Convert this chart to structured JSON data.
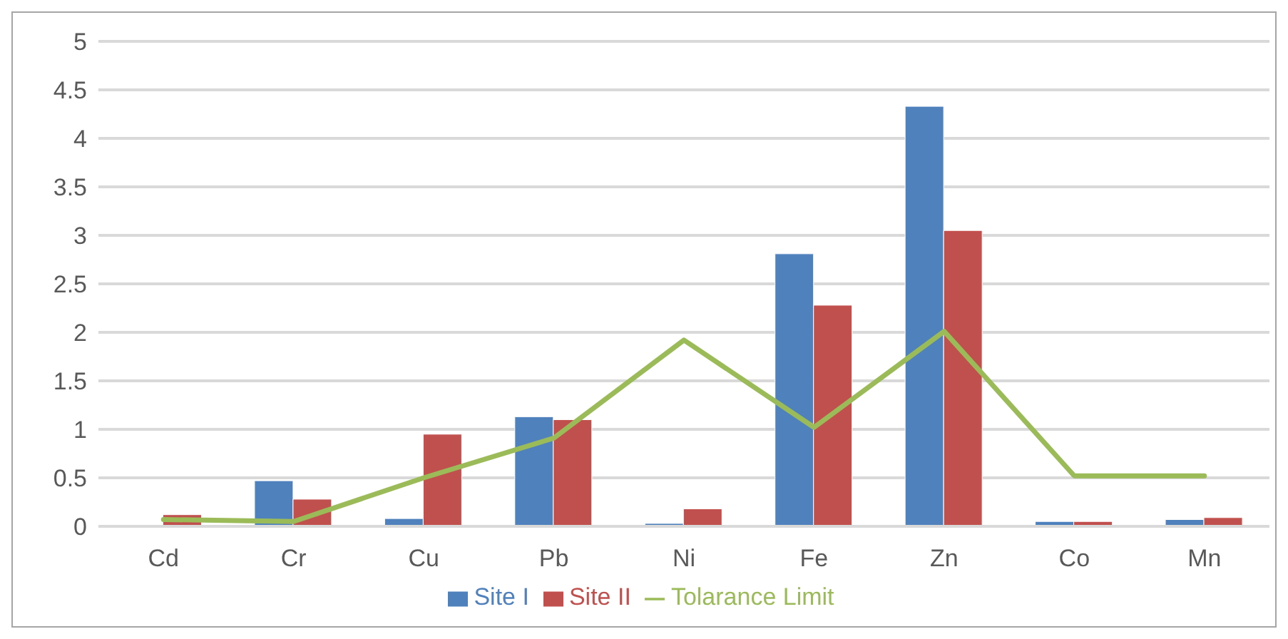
{
  "chart_data": {
    "type": "bar",
    "categories": [
      "Cd",
      "Cr",
      "Cu",
      "Pb",
      "Ni",
      "Fe",
      "Zn",
      "Co",
      "Mn"
    ],
    "series": [
      {
        "name": "Site I",
        "color": "#4f81bd",
        "values": [
          0,
          0.47,
          0.08,
          1.13,
          0.03,
          2.81,
          4.33,
          0.05,
          0.07
        ]
      },
      {
        "name": "Site II",
        "color": "#c0504d",
        "values": [
          0.12,
          0.28,
          0.95,
          1.1,
          0.18,
          2.28,
          3.05,
          0.05,
          0.09
        ]
      },
      {
        "name": "Tolarance Limit",
        "type": "line",
        "color": "#9bbb59",
        "values": [
          0.07,
          0.05,
          0.5,
          0.91,
          1.92,
          1.02,
          2.01,
          0.52,
          0.52
        ]
      }
    ],
    "ylim": [
      0,
      5
    ],
    "yticks": [
      0,
      0.5,
      1,
      1.5,
      2,
      2.5,
      3,
      3.5,
      4,
      4.5,
      5
    ],
    "grid": "y",
    "legend": "bottom",
    "marker": "none"
  }
}
